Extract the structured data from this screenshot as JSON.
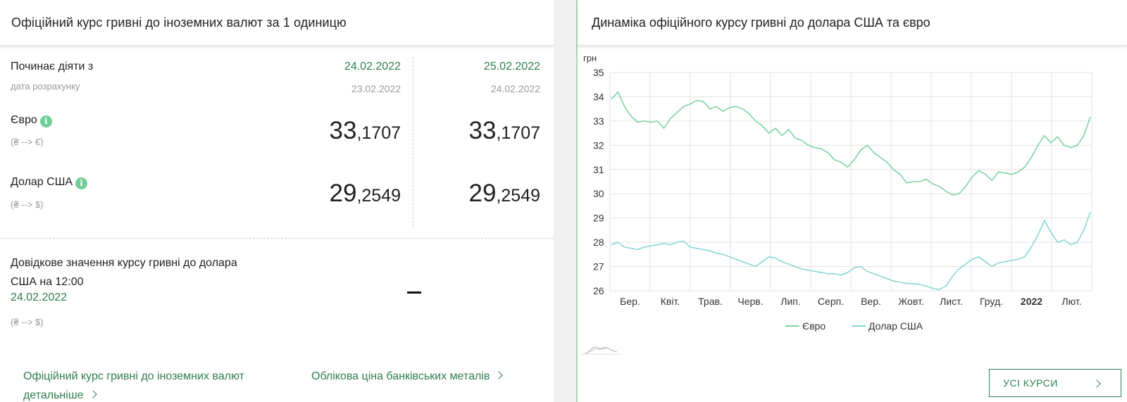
{
  "left": {
    "title": "Офіційний курс гривні до іноземних валют за 1 одиницю",
    "starts_label": "Починає діяти з",
    "calc_label": "дата розрахунку",
    "columns": [
      {
        "start_date": "24.02.2022",
        "calc_date": "23.02.2022",
        "eur_int": "33",
        "eur_frac": ",1707",
        "usd_int": "29",
        "usd_frac": ",2549"
      },
      {
        "start_date": "25.02.2022",
        "calc_date": "24.02.2022",
        "eur_int": "33",
        "eur_frac": ",1707",
        "usd_int": "29",
        "usd_frac": ",2549"
      }
    ],
    "eur_label": "Євро",
    "eur_sub": "(₴ --> €)",
    "usd_label": "Долар США",
    "usd_sub": "(₴ --> $)",
    "info_glyph": "i",
    "ref_text": "Довідкове значення курсу гривні до долара США на 12:00",
    "ref_date": "24.02.2022",
    "ref_sub": "(₴ --> $)",
    "ref_value": "–",
    "link_rates": "Офіційний курс гривні до іноземних валют детальніше",
    "link_metals": "Облікова ціна банківських металів"
  },
  "right": {
    "title": "Динаміка офіційного курсу гривні до долара США та євро",
    "button": "УСІ КУРСИ"
  },
  "chart_data": {
    "type": "line",
    "ylabel": "грн",
    "ylim": [
      26,
      35
    ],
    "yticks": [
      26,
      27,
      28,
      29,
      30,
      31,
      32,
      33,
      34,
      35
    ],
    "x_ticks": [
      "Бер.",
      "Квіт.",
      "Трав.",
      "Черв.",
      "Лип.",
      "Серп.",
      "Вер.",
      "Жовт.",
      "Лист.",
      "Груд.",
      "2022",
      "Лют."
    ],
    "legend_position": "bottom",
    "grid": true,
    "series": [
      {
        "name": "Євро",
        "color": "#7dd3a2",
        "values": [
          33.9,
          34.2,
          33.6,
          33.2,
          32.95,
          33.0,
          32.95,
          33.0,
          32.7,
          33.1,
          33.35,
          33.6,
          33.7,
          33.85,
          33.8,
          33.5,
          33.6,
          33.4,
          33.55,
          33.6,
          33.5,
          33.3,
          33.0,
          32.8,
          32.5,
          32.7,
          32.4,
          32.65,
          32.3,
          32.2,
          32.0,
          31.9,
          31.85,
          31.7,
          31.4,
          31.3,
          31.1,
          31.4,
          31.8,
          32.0,
          31.7,
          31.5,
          31.3,
          31.0,
          30.8,
          30.45,
          30.5,
          30.5,
          30.6,
          30.4,
          30.3,
          30.1,
          29.95,
          30.0,
          30.3,
          30.7,
          30.95,
          30.8,
          30.55,
          30.9,
          30.85,
          30.8,
          30.9,
          31.1,
          31.5,
          32.0,
          32.4,
          32.1,
          32.35,
          32.0,
          31.9,
          32.0,
          32.4,
          33.17
        ]
      },
      {
        "name": "Долар США",
        "color": "#8ad6d6",
        "values": [
          27.9,
          28.0,
          27.8,
          27.75,
          27.7,
          27.8,
          27.85,
          27.9,
          27.95,
          27.9,
          28.0,
          28.05,
          27.8,
          27.75,
          27.7,
          27.65,
          27.55,
          27.5,
          27.4,
          27.3,
          27.2,
          27.1,
          27.0,
          27.2,
          27.4,
          27.35,
          27.2,
          27.1,
          27.0,
          26.9,
          26.85,
          26.8,
          26.75,
          26.7,
          26.7,
          26.65,
          26.75,
          26.95,
          27.0,
          26.8,
          26.7,
          26.6,
          26.5,
          26.4,
          26.35,
          26.3,
          26.3,
          26.25,
          26.2,
          26.1,
          26.05,
          26.2,
          26.6,
          26.9,
          27.1,
          27.3,
          27.4,
          27.2,
          27.0,
          27.15,
          27.2,
          27.25,
          27.3,
          27.4,
          27.8,
          28.3,
          28.9,
          28.4,
          28.0,
          28.1,
          27.9,
          28.0,
          28.5,
          29.25
        ]
      }
    ]
  }
}
